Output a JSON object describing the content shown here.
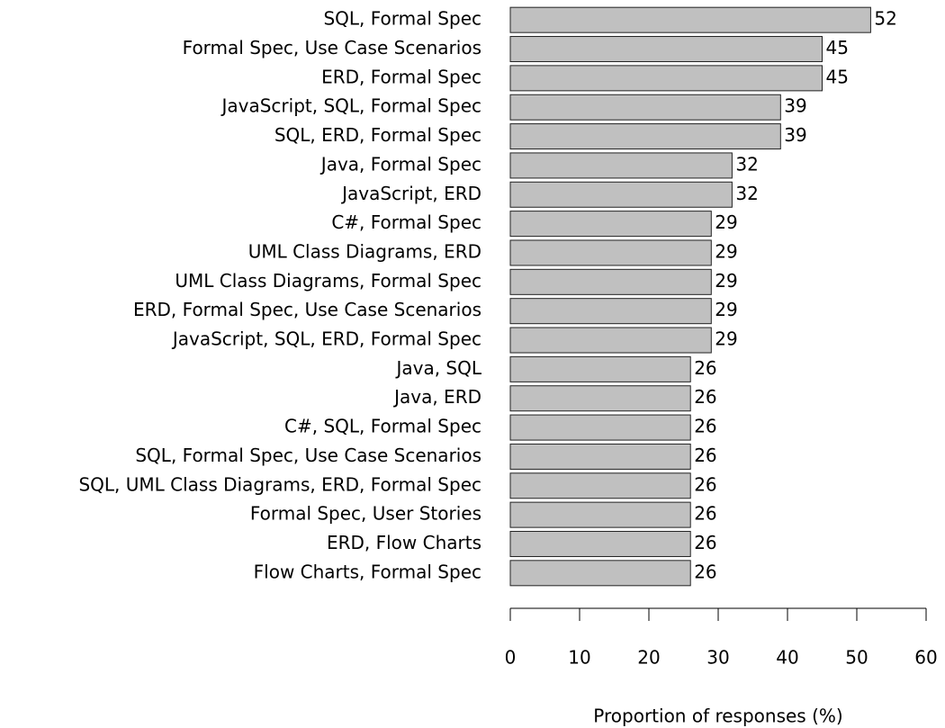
{
  "chart_data": {
    "type": "barh",
    "x_label": "Proportion of responses (%)",
    "categories": [
      "SQL, Formal Spec",
      "Formal Spec, Use Case Scenarios",
      "ERD, Formal Spec",
      "JavaScript, SQL, Formal Spec",
      "SQL, ERD, Formal Spec",
      "Java, Formal Spec",
      "JavaScript, ERD",
      "C#, Formal Spec",
      "UML Class Diagrams, ERD",
      "UML Class Diagrams, Formal Spec",
      "ERD, Formal Spec, Use Case Scenarios",
      "JavaScript, SQL, ERD, Formal Spec",
      "Java, SQL",
      "Java, ERD",
      "C#, SQL, Formal Spec",
      "SQL, Formal Spec, Use Case Scenarios",
      "SQL, UML Class Diagrams, ERD, Formal Spec",
      "Formal Spec, User Stories",
      "ERD, Flow Charts",
      "Flow Charts, Formal Spec"
    ],
    "values": [
      52,
      45,
      45,
      39,
      39,
      32,
      32,
      29,
      29,
      29,
      29,
      29,
      26,
      26,
      26,
      26,
      26,
      26,
      26,
      26
    ],
    "color": "#c0c0c0",
    "xlim": [
      0,
      60
    ],
    "xticks": [
      0,
      10,
      20,
      30,
      40,
      50,
      60
    ]
  }
}
